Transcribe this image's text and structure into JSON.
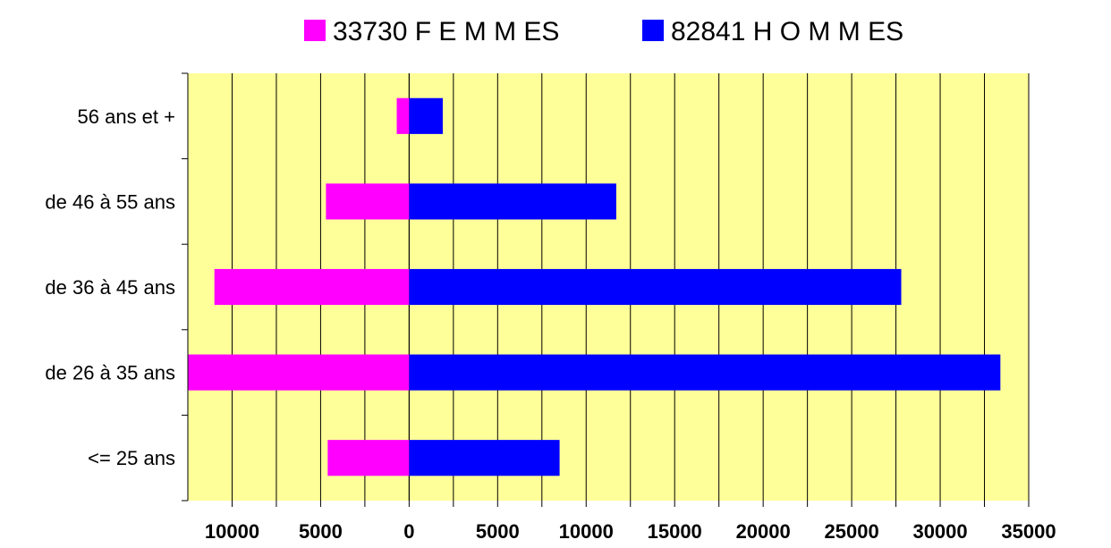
{
  "chart_data": {
    "type": "bar",
    "orientation": "horizontal",
    "stacked": "diverging",
    "categories": [
      "56 ans et +",
      "de 46 à 55 ans",
      "de 36 à 45 ans",
      "de 26 à 35 ans",
      "<= 25 ans"
    ],
    "series": [
      {
        "name": "33730 F E M M ES",
        "color": "#ff00ff",
        "values": [
          -700,
          -4700,
          -11000,
          -12500,
          -4600
        ]
      },
      {
        "name": "82841 H O M M ES",
        "color": "#0000ff",
        "values": [
          1900,
          11700,
          27800,
          33400,
          8500
        ]
      }
    ],
    "x_ticks": [
      {
        "value": -10000,
        "label": "10000"
      },
      {
        "value": -5000,
        "label": "5000"
      },
      {
        "value": 0,
        "label": "0"
      },
      {
        "value": 5000,
        "label": "5000"
      },
      {
        "value": 10000,
        "label": "10000"
      },
      {
        "value": 15000,
        "label": "15000"
      },
      {
        "value": 20000,
        "label": "20000"
      },
      {
        "value": 25000,
        "label": "25000"
      },
      {
        "value": 30000,
        "label": "30000"
      },
      {
        "value": 35000,
        "label": "35000"
      }
    ],
    "xlim": [
      -12500,
      35000
    ],
    "grid": "vertical",
    "plot_background": "#ffff99",
    "legend_position": "top"
  }
}
